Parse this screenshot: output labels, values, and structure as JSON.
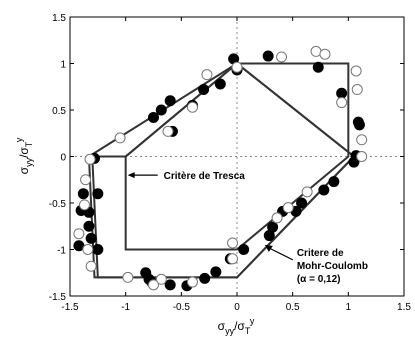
{
  "chart_data": {
    "type": "scatter",
    "xlabel": {
      "base": "σ",
      "sub": "yy",
      "slash": "/σ",
      "sub2": "T",
      "sup": "y"
    },
    "ylabel": {
      "base": "σ",
      "sub": "yy",
      "slash": "/σ",
      "sub2": "T",
      "sup": "y"
    },
    "xlim": [
      -1.5,
      1.5
    ],
    "ylim": [
      -1.5,
      1.5
    ],
    "xticks": [
      -1.5,
      -1,
      -0.5,
      0,
      0.5,
      1,
      1.5
    ],
    "yticks": [
      -1.5,
      -1,
      -0.5,
      0,
      0.5,
      1,
      1.5
    ],
    "xtick_labels": [
      "-1.5",
      "-1",
      "-0.5",
      "0",
      "0.5",
      "1",
      "1.5"
    ],
    "ytick_labels": [
      "-1.5",
      "-1",
      "-0.5",
      "0",
      "0.5",
      "1",
      "1.5"
    ],
    "series": [
      {
        "marker": "filled-circle",
        "x": [
          -0.03,
          0.0,
          0.28,
          0.73,
          0.94,
          1.09,
          1.1,
          1.07,
          1.05,
          0.87,
          0.78,
          0.58,
          0.53,
          0.41,
          0.32,
          0.29,
          0.06,
          -0.06,
          -0.19,
          -0.29,
          -0.45,
          -0.6,
          -0.76,
          -0.79,
          -0.82,
          -1.25,
          -1.31,
          -1.42,
          -1.33,
          -1.25,
          -1.28,
          -1.38,
          -1.4,
          -1.33,
          -0.15,
          -0.3,
          -0.4,
          -0.6,
          -0.68,
          -0.75,
          -0.58
        ],
        "y": [
          1.05,
          0.93,
          1.08,
          0.96,
          0.68,
          0.37,
          0.34,
          0.01,
          -0.06,
          -0.27,
          -0.36,
          -0.5,
          -0.59,
          -0.59,
          -0.76,
          -0.85,
          -1.0,
          -1.1,
          -1.24,
          -1.31,
          -1.39,
          -1.38,
          -1.36,
          -1.32,
          -1.25,
          -1.0,
          -0.88,
          -0.96,
          -0.75,
          -0.4,
          -0.02,
          -0.4,
          -0.58,
          -0.6,
          0.78,
          0.72,
          0.55,
          0.6,
          0.5,
          0.42,
          0.27
        ]
      },
      {
        "marker": "open-circle",
        "x": [
          0.0,
          0.4,
          0.71,
          0.79,
          1.07,
          1.08,
          0.94,
          1.12,
          1.12,
          0.63,
          0.46,
          0.36,
          -0.04,
          -0.04,
          -0.4,
          -0.68,
          -0.75,
          -0.98,
          -1.31,
          -1.34,
          -1.42,
          -1.37,
          -1.32,
          -1.36,
          -1.05,
          -0.27,
          -0.4,
          -0.62
        ],
        "y": [
          0.96,
          1.07,
          1.13,
          1.1,
          0.92,
          0.72,
          0.58,
          0.18,
          0.0,
          -0.38,
          -0.55,
          -0.66,
          -0.93,
          -1.1,
          -1.35,
          -1.32,
          -1.38,
          -1.3,
          -1.18,
          -1.0,
          -0.83,
          -0.52,
          -0.03,
          -0.25,
          0.2,
          0.88,
          0.53,
          0.27
        ]
      }
    ],
    "curves": [
      {
        "name": "Critère de Tresca",
        "style": "solid",
        "x": [
          0.0,
          1.0,
          1.0,
          0.0,
          -1.0,
          -1.0,
          0.0
        ],
        "y": [
          1.0,
          1.0,
          0.0,
          -1.0,
          -1.0,
          0.0,
          1.0
        ]
      },
      {
        "name": "Critere de Mohr-Coulomb",
        "style": "solid",
        "x": [
          -1.0,
          -1.3,
          -1.25,
          0.0,
          1.05,
          1.05,
          0.0,
          -1.0,
          -1.0
        ],
        "y": [
          0.0,
          0.0,
          -1.3,
          -1.3,
          0.0,
          0.0,
          1.0,
          0.0,
          0.0
        ],
        "x2": [
          -1.25,
          -1.35,
          -1.28,
          0.0,
          1.07,
          1.05,
          0.0,
          -1.25
        ],
        "y2": [
          0.0,
          0.0,
          -1.25,
          -1.25,
          0.0,
          0.0,
          1.0,
          0.0
        ]
      }
    ],
    "annotations": [
      {
        "lines": [
          "Critère de Tresca"
        ],
        "arrow_to_x": -1.0,
        "arrow_to_y": 0.0
      },
      {
        "lines": [
          "Critere de",
          "Mohr-Coulomb",
          "(α = 0,12)"
        ],
        "arrow_to_x": 0.25,
        "arrow_to_y": -0.95
      }
    ],
    "grid": "dashed-zero-lines"
  }
}
